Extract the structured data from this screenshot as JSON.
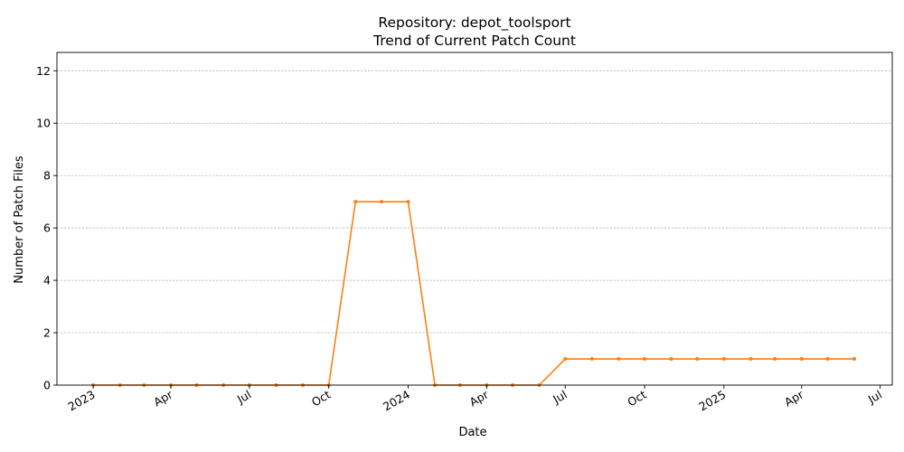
{
  "chart_data": {
    "type": "line",
    "title_line1": "Repository: depot_toolsport",
    "title_line2": "Trend of Current Patch Count",
    "xlabel": "Date",
    "ylabel": "Number of Patch Files",
    "x_range": [
      "2022-11-20",
      "2025-07-15"
    ],
    "ylim": [
      0,
      12.7
    ],
    "y_ticks": [
      0,
      2,
      4,
      6,
      8,
      10,
      12
    ],
    "x_ticks": [
      {
        "date": "2023-01-01",
        "label": "2023"
      },
      {
        "date": "2023-04-01",
        "label": "Apr"
      },
      {
        "date": "2023-07-01",
        "label": "Jul"
      },
      {
        "date": "2023-10-01",
        "label": "Oct"
      },
      {
        "date": "2024-01-01",
        "label": "2024"
      },
      {
        "date": "2024-04-01",
        "label": "Apr"
      },
      {
        "date": "2024-07-01",
        "label": "Jul"
      },
      {
        "date": "2024-10-01",
        "label": "Oct"
      },
      {
        "date": "2025-01-01",
        "label": "2025"
      },
      {
        "date": "2025-04-01",
        "label": "Apr"
      },
      {
        "date": "2025-07-01",
        "label": "Jul"
      }
    ],
    "grid": "y",
    "series": [
      {
        "color": "#ff7f0e",
        "x": [
          "2023-01-01",
          "2023-02-01",
          "2023-03-01",
          "2023-04-01",
          "2023-05-01",
          "2023-06-01",
          "2023-07-01",
          "2023-08-01",
          "2023-09-01",
          "2023-10-01",
          "2023-11-01",
          "2023-12-01",
          "2024-01-01",
          "2024-02-01",
          "2024-03-01",
          "2024-04-01",
          "2024-05-01",
          "2024-06-01",
          "2024-07-01",
          "2024-08-01",
          "2024-09-01",
          "2024-10-01",
          "2024-11-01",
          "2024-12-01",
          "2025-01-01",
          "2025-02-01",
          "2025-03-01",
          "2025-04-01",
          "2025-05-01",
          "2025-06-01"
        ],
        "values": [
          0,
          0,
          0,
          0,
          0,
          0,
          0,
          0,
          0,
          0,
          7,
          7,
          7,
          0,
          0,
          0,
          0,
          0,
          1,
          1,
          1,
          1,
          1,
          1,
          1,
          1,
          1,
          1,
          1,
          1
        ]
      }
    ]
  }
}
